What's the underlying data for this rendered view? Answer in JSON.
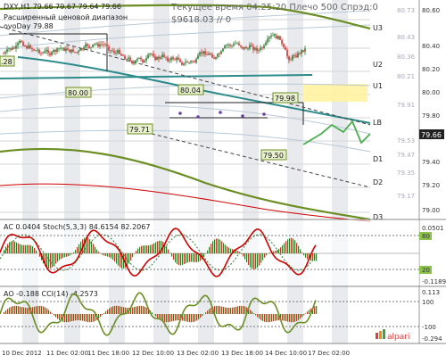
{
  "header": {
    "title": "DXY,H1  79.66 79.67 79.64 79.66",
    "indicator_name": "Расширенный ценовой диапазон",
    "indicator_value": "ovoDay 79.88",
    "server_time": "Текущее время 04:25:20 Плечо 500 Спрэд:0",
    "balance": "$9618.03   // 0"
  },
  "levels": {
    "U3": "U3",
    "U2": "U2",
    "U1": "U1",
    "LB": "LB",
    "D1": "D1",
    "D2": "D2",
    "D3": "D3"
  },
  "price_boxes": {
    "p1": "80.00",
    "p2": "80.04",
    "p3": "79.98",
    "p4": "79.71",
    "p5": "79.50",
    "p6": "79.66",
    "p7": ".28"
  },
  "price_axis": [
    "80.60",
    "80.40",
    "80.20",
    "80.00",
    "79.80",
    "79.66",
    "79.40",
    "79.20",
    "79.00"
  ],
  "faint_axis": [
    "80.73",
    "80.43",
    "80.36",
    "80.21",
    "79.91",
    "79.53",
    "79.47",
    "79.35",
    "79.17"
  ],
  "time_axis": [
    "10 Dec 2012",
    "11 Dec 02:00",
    "11 Dec 18:00",
    "12 Dec 10:00",
    "13 Dec 02:00",
    "13 Dec 18:00",
    "14 Dec 10:00",
    "17 Dec 02:00"
  ],
  "panel2": {
    "label": "AC 0.0404  Stoch(5,3,3) 84.6154 82.2067",
    "axis": [
      "0.0501",
      "80",
      "20",
      "-0.1189"
    ]
  },
  "panel3": {
    "label": "AO -0.188  CCI(14) -4.2573",
    "axis": [
      "0.113",
      "100",
      "-100",
      "-0.294"
    ]
  },
  "brand": "alpari",
  "icons": {
    "brand_logo": "alpari-bars-icon"
  },
  "colors": {
    "olive": "#6b8e23",
    "teal": "#2e8b8b",
    "bull": "#2e7d32",
    "bear": "#d32f2f",
    "red": "#d00000",
    "green_osc": "#4caf50",
    "yellow": "#fff3a0"
  }
}
